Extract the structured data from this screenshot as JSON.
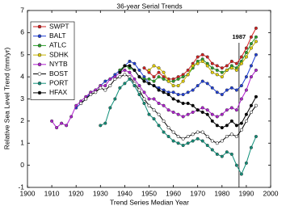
{
  "chart_data": {
    "type": "line",
    "title": "36-year Serial Trends",
    "x_label": "Trend Series Median Year",
    "y_label": "Relative Sea Level Trend (mm/yr)",
    "x": [
      1910,
      1912,
      1914,
      1916,
      1918,
      1920,
      1922,
      1924,
      1926,
      1928,
      1930,
      1932,
      1934,
      1936,
      1938,
      1940,
      1942,
      1944,
      1946,
      1948,
      1950,
      1952,
      1954,
      1956,
      1958,
      1960,
      1962,
      1964,
      1966,
      1968,
      1970,
      1972,
      1974,
      1976,
      1978,
      1980,
      1982,
      1984,
      1986,
      1988,
      1990,
      1992,
      1994
    ],
    "series": [
      {
        "name": "SWPT",
        "color": "#d62020",
        "marker_fill": "#d62020",
        "values": [
          null,
          null,
          null,
          null,
          null,
          null,
          null,
          null,
          null,
          null,
          null,
          null,
          null,
          null,
          null,
          null,
          null,
          null,
          null,
          4.4,
          4.2,
          4.0,
          4.2,
          4.0,
          3.9,
          3.9,
          4.0,
          4.1,
          4.3,
          4.6,
          4.9,
          5.0,
          4.9,
          4.6,
          4.5,
          4.4,
          4.5,
          4.7,
          4.6,
          4.9,
          5.3,
          5.8,
          6.2
        ]
      },
      {
        "name": "BALT",
        "color": "#1f3fd6",
        "marker_fill": "#1f3fd6",
        "values": [
          null,
          null,
          null,
          null,
          null,
          2.6,
          2.8,
          3.0,
          3.3,
          3.4,
          3.6,
          3.8,
          3.9,
          4.1,
          4.3,
          4.5,
          4.7,
          4.6,
          4.3,
          4.0,
          3.7,
          3.6,
          3.5,
          3.4,
          3.3,
          3.3,
          3.2,
          3.2,
          3.3,
          3.4,
          3.6,
          3.8,
          3.7,
          3.5,
          3.3,
          3.2,
          3.4,
          3.5,
          3.4,
          3.6,
          4.0,
          4.5,
          5.0
        ]
      },
      {
        "name": "ATLC",
        "color": "#2aa02a",
        "marker_fill": "#2aa02a",
        "values": [
          null,
          null,
          null,
          null,
          null,
          null,
          null,
          null,
          null,
          null,
          null,
          null,
          null,
          null,
          4.3,
          4.5,
          4.4,
          4.3,
          4.0,
          3.9,
          3.9,
          3.8,
          4.0,
          3.9,
          3.8,
          3.8,
          3.9,
          4.0,
          4.1,
          4.4,
          4.7,
          4.8,
          4.6,
          4.4,
          4.3,
          4.2,
          4.3,
          4.5,
          4.4,
          4.7,
          5.1,
          5.5,
          5.8
        ]
      },
      {
        "name": "SDHK",
        "color": "#c8b400",
        "marker_fill": "#e6d200",
        "values": [
          null,
          null,
          null,
          null,
          null,
          null,
          null,
          null,
          null,
          null,
          null,
          null,
          null,
          null,
          null,
          null,
          null,
          null,
          null,
          null,
          4.3,
          4.5,
          4.4,
          4.2,
          3.8,
          3.6,
          3.6,
          3.8,
          4.1,
          4.5,
          4.6,
          4.7,
          4.5,
          4.2,
          4.1,
          4.0,
          4.3,
          4.4,
          4.3,
          4.6,
          4.9,
          5.3,
          5.6
        ]
      },
      {
        "name": "NYTB",
        "color": "#b020d0",
        "marker_fill": "#b020d0",
        "values": [
          2.0,
          1.7,
          1.9,
          1.8,
          2.2,
          2.7,
          2.9,
          3.1,
          3.3,
          3.4,
          3.6,
          3.6,
          3.9,
          4.0,
          4.2,
          4.3,
          4.2,
          3.9,
          3.6,
          3.3,
          3.0,
          3.0,
          2.8,
          2.7,
          2.5,
          2.4,
          2.3,
          2.2,
          2.3,
          2.4,
          2.5,
          2.6,
          2.5,
          2.3,
          2.2,
          2.3,
          2.5,
          2.6,
          2.5,
          3.0,
          3.4,
          4.0,
          4.3
        ]
      },
      {
        "name": "BOST",
        "color": "#000000",
        "marker_fill": "#ffffff",
        "values": [
          null,
          null,
          null,
          null,
          null,
          null,
          2.8,
          3.0,
          3.2,
          3.3,
          3.5,
          3.4,
          3.6,
          3.9,
          4.0,
          4.1,
          4.0,
          3.7,
          3.4,
          3.0,
          2.7,
          2.5,
          2.3,
          2.0,
          1.7,
          1.5,
          1.3,
          1.2,
          1.3,
          1.4,
          1.5,
          1.5,
          1.3,
          1.1,
          1.0,
          1.1,
          1.3,
          1.4,
          1.3,
          1.6,
          2.0,
          2.4,
          2.7
        ]
      },
      {
        "name": "PORT",
        "color": "#10907a",
        "marker_fill": "#10907a",
        "values": [
          null,
          null,
          null,
          null,
          null,
          null,
          null,
          null,
          null,
          null,
          1.8,
          1.9,
          2.6,
          3.0,
          3.5,
          3.7,
          3.9,
          3.6,
          3.2,
          2.8,
          2.3,
          2.1,
          1.8,
          1.5,
          1.3,
          1.1,
          1.0,
          0.9,
          1.0,
          1.1,
          1.2,
          1.1,
          0.9,
          0.7,
          0.5,
          0.4,
          0.6,
          0.5,
          0.0,
          -0.4,
          0.1,
          0.8,
          1.3
        ]
      },
      {
        "name": "HFAX",
        "color": "#000000",
        "marker_fill": "#000000",
        "values": [
          null,
          null,
          null,
          null,
          null,
          null,
          null,
          null,
          null,
          null,
          null,
          null,
          null,
          null,
          4.2,
          4.5,
          4.5,
          4.3,
          4.0,
          3.8,
          3.7,
          3.6,
          3.4,
          3.3,
          3.2,
          3.0,
          2.9,
          2.8,
          2.8,
          2.7,
          2.5,
          2.4,
          2.3,
          2.0,
          1.8,
          1.7,
          1.8,
          2.0,
          1.8,
          1.9,
          2.3,
          2.7,
          3.1
        ]
      }
    ],
    "annotation": {
      "label": "1987",
      "x": 1987
    },
    "xlim": [
      1900,
      2000
    ],
    "xticks": [
      1900,
      1910,
      1920,
      1930,
      1940,
      1950,
      1960,
      1970,
      1980,
      1990,
      2000
    ],
    "ylim": [
      -1,
      7
    ],
    "yticks": [
      -1,
      0,
      1,
      2,
      3,
      4,
      5,
      6,
      7
    ],
    "legend": "upper-left"
  }
}
